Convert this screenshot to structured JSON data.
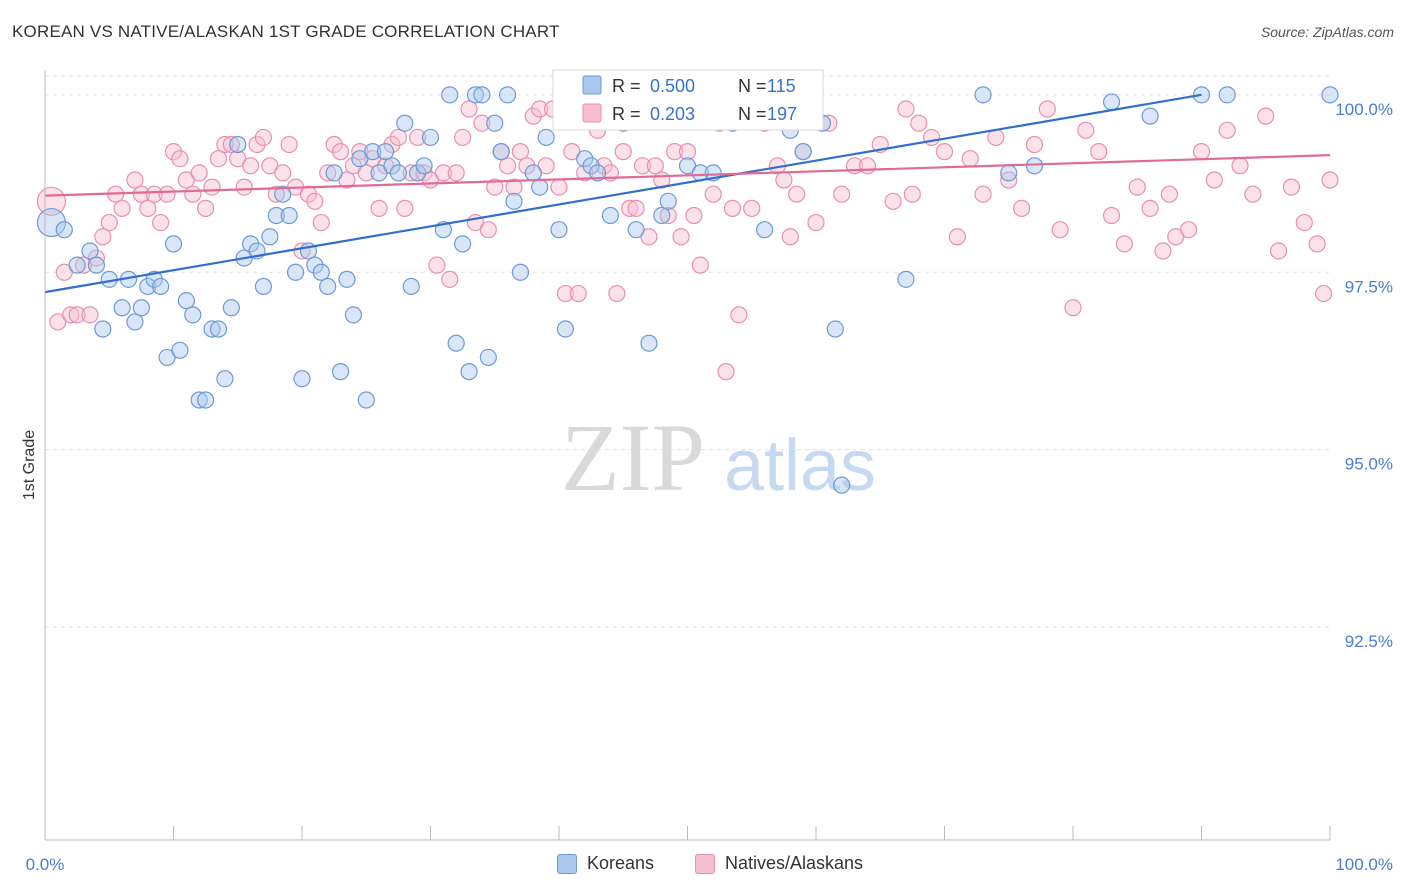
{
  "title": "KOREAN VS NATIVE/ALASKAN 1ST GRADE CORRELATION CHART",
  "source": "Source: ZipAtlas.com",
  "watermark": {
    "zip": "ZIP",
    "atlas": "atlas"
  },
  "legend": {
    "r_label": "R =",
    "n_label": "N =",
    "series": [
      {
        "name": "Koreans",
        "r": "0.500",
        "n": "115"
      },
      {
        "name": "Natives/Alaskans",
        "r": "0.203",
        "n": "197"
      }
    ]
  },
  "colors": {
    "blue_fill": "#a9c8ee",
    "blue_stroke": "#6d9ad6",
    "blue_line": "#2f6fce",
    "pink_fill": "#f6bfd0",
    "pink_stroke": "#e98fae",
    "pink_line": "#e06a98",
    "tick_text": "#4a7fd0",
    "grid": "#e3e3e3"
  },
  "chart_data": {
    "type": "scatter",
    "title": "KOREAN VS NATIVE/ALASKAN 1ST GRADE CORRELATION CHART",
    "xlabel": "",
    "ylabel": "1st Grade",
    "xlim": [
      0,
      100
    ],
    "ylim": [
      89.5,
      100.35
    ],
    "x_tick_labels": [
      "0.0%",
      "100.0%"
    ],
    "y_ticks": [
      {
        "value": 100.0,
        "label": "100.0%"
      },
      {
        "value": 97.5,
        "label": "97.5%"
      },
      {
        "value": 95.0,
        "label": "95.0%"
      },
      {
        "value": 92.5,
        "label": "92.5%"
      }
    ],
    "grid": true,
    "legend_position": "top-center",
    "series": [
      {
        "name": "Koreans",
        "trend": {
          "x": [
            0,
            90
          ],
          "y": [
            97.22,
            100.0
          ]
        },
        "points": [
          [
            0.5,
            98.2
          ],
          [
            1.5,
            98.1
          ],
          [
            2.5,
            97.6
          ],
          [
            3.5,
            97.8
          ],
          [
            4.0,
            97.6
          ],
          [
            4.5,
            96.7
          ],
          [
            5.0,
            97.4
          ],
          [
            6.0,
            97.0
          ],
          [
            6.5,
            97.4
          ],
          [
            7.0,
            96.8
          ],
          [
            7.5,
            97.0
          ],
          [
            8.0,
            97.3
          ],
          [
            8.5,
            97.4
          ],
          [
            9.0,
            97.3
          ],
          [
            9.5,
            96.3
          ],
          [
            10.0,
            97.9
          ],
          [
            10.5,
            96.4
          ],
          [
            11.0,
            97.1
          ],
          [
            11.5,
            96.9
          ],
          [
            12.0,
            95.7
          ],
          [
            12.5,
            95.7
          ],
          [
            13.0,
            96.7
          ],
          [
            13.5,
            96.7
          ],
          [
            14.0,
            96.0
          ],
          [
            14.5,
            97.0
          ],
          [
            15.0,
            99.3
          ],
          [
            15.5,
            97.7
          ],
          [
            16.0,
            97.9
          ],
          [
            16.5,
            97.8
          ],
          [
            17.0,
            97.3
          ],
          [
            17.5,
            98.0
          ],
          [
            18.0,
            98.3
          ],
          [
            18.5,
            98.6
          ],
          [
            19.0,
            98.3
          ],
          [
            19.5,
            97.5
          ],
          [
            20.0,
            96.0
          ],
          [
            20.5,
            97.8
          ],
          [
            21.0,
            97.6
          ],
          [
            21.5,
            97.5
          ],
          [
            22.0,
            97.3
          ],
          [
            22.5,
            98.9
          ],
          [
            23.0,
            96.1
          ],
          [
            23.5,
            97.4
          ],
          [
            24.0,
            96.9
          ],
          [
            24.5,
            99.1
          ],
          [
            25.0,
            95.7
          ],
          [
            25.5,
            99.2
          ],
          [
            26.0,
            98.9
          ],
          [
            26.5,
            99.2
          ],
          [
            27.0,
            99.0
          ],
          [
            27.5,
            98.9
          ],
          [
            28.0,
            99.6
          ],
          [
            28.5,
            97.3
          ],
          [
            29.0,
            98.9
          ],
          [
            29.5,
            99.0
          ],
          [
            30.0,
            99.4
          ],
          [
            31.0,
            98.1
          ],
          [
            31.5,
            100.0
          ],
          [
            32.0,
            96.5
          ],
          [
            32.5,
            97.9
          ],
          [
            33.0,
            96.1
          ],
          [
            33.5,
            100.0
          ],
          [
            34.0,
            100.0
          ],
          [
            34.5,
            96.3
          ],
          [
            35.0,
            99.6
          ],
          [
            35.5,
            99.2
          ],
          [
            36.0,
            100.0
          ],
          [
            36.5,
            98.5
          ],
          [
            37.0,
            97.5
          ],
          [
            38.0,
            98.9
          ],
          [
            38.5,
            98.7
          ],
          [
            39.0,
            99.4
          ],
          [
            40.0,
            98.1
          ],
          [
            40.5,
            96.7
          ],
          [
            41.0,
            100.0
          ],
          [
            42.0,
            99.1
          ],
          [
            42.5,
            99.0
          ],
          [
            43.0,
            98.9
          ],
          [
            44.0,
            98.3
          ],
          [
            45.0,
            99.6
          ],
          [
            46.0,
            98.1
          ],
          [
            46.5,
            100.0
          ],
          [
            47.0,
            96.5
          ],
          [
            48.0,
            98.3
          ],
          [
            48.5,
            98.5
          ],
          [
            50.0,
            99.0
          ],
          [
            51.0,
            98.9
          ],
          [
            52.0,
            98.9
          ],
          [
            53.5,
            99.6
          ],
          [
            56.0,
            98.1
          ],
          [
            58.0,
            99.5
          ],
          [
            59.0,
            99.2
          ],
          [
            60.5,
            99.6
          ],
          [
            61.5,
            96.7
          ],
          [
            62.0,
            94.5
          ],
          [
            67.0,
            97.4
          ],
          [
            73.0,
            100.0
          ],
          [
            75.0,
            98.9
          ],
          [
            77.0,
            99.0
          ],
          [
            83.0,
            99.9
          ],
          [
            86.0,
            99.7
          ],
          [
            90.0,
            100.0
          ],
          [
            92.0,
            100.0
          ],
          [
            100.0,
            100.0
          ]
        ]
      },
      {
        "name": "Natives/Alaskans",
        "trend": {
          "x": [
            0,
            100
          ],
          "y": [
            98.58,
            99.15
          ]
        },
        "points": [
          [
            0.5,
            98.5
          ],
          [
            1.0,
            96.8
          ],
          [
            1.5,
            97.5
          ],
          [
            2.0,
            96.9
          ],
          [
            2.5,
            96.9
          ],
          [
            3.0,
            97.6
          ],
          [
            3.5,
            96.9
          ],
          [
            4.0,
            97.7
          ],
          [
            4.5,
            98.0
          ],
          [
            5.0,
            98.2
          ],
          [
            5.5,
            98.6
          ],
          [
            6.0,
            98.4
          ],
          [
            7.0,
            98.8
          ],
          [
            7.5,
            98.6
          ],
          [
            8.0,
            98.4
          ],
          [
            8.5,
            98.6
          ],
          [
            9.0,
            98.2
          ],
          [
            9.5,
            98.6
          ],
          [
            10.0,
            99.2
          ],
          [
            10.5,
            99.1
          ],
          [
            11.0,
            98.8
          ],
          [
            11.5,
            98.6
          ],
          [
            12.0,
            98.9
          ],
          [
            12.5,
            98.4
          ],
          [
            13.0,
            98.7
          ],
          [
            13.5,
            99.1
          ],
          [
            14.0,
            99.3
          ],
          [
            14.5,
            99.3
          ],
          [
            15.0,
            99.1
          ],
          [
            15.5,
            98.7
          ],
          [
            16.0,
            99.0
          ],
          [
            16.5,
            99.3
          ],
          [
            17.0,
            99.4
          ],
          [
            17.5,
            99.0
          ],
          [
            18.0,
            98.6
          ],
          [
            18.5,
            98.9
          ],
          [
            19.0,
            99.3
          ],
          [
            19.5,
            98.7
          ],
          [
            20.0,
            97.8
          ],
          [
            20.5,
            98.6
          ],
          [
            21.0,
            98.5
          ],
          [
            21.5,
            98.2
          ],
          [
            22.0,
            98.9
          ],
          [
            22.5,
            99.3
          ],
          [
            23.0,
            99.2
          ],
          [
            23.5,
            98.8
          ],
          [
            24.0,
            99.0
          ],
          [
            24.5,
            99.2
          ],
          [
            25.0,
            98.9
          ],
          [
            25.5,
            99.1
          ],
          [
            26.0,
            98.4
          ],
          [
            26.5,
            99.0
          ],
          [
            27.0,
            99.3
          ],
          [
            27.5,
            99.4
          ],
          [
            28.0,
            98.4
          ],
          [
            28.5,
            98.9
          ],
          [
            29.0,
            99.4
          ],
          [
            29.5,
            98.9
          ],
          [
            30.0,
            98.8
          ],
          [
            30.5,
            97.6
          ],
          [
            31.0,
            98.9
          ],
          [
            31.5,
            97.4
          ],
          [
            32.0,
            98.9
          ],
          [
            32.5,
            99.4
          ],
          [
            33.0,
            99.8
          ],
          [
            33.5,
            98.2
          ],
          [
            34.0,
            99.6
          ],
          [
            34.5,
            98.1
          ],
          [
            35.0,
            98.7
          ],
          [
            35.5,
            99.2
          ],
          [
            36.0,
            99.0
          ],
          [
            36.5,
            98.7
          ],
          [
            37.0,
            99.2
          ],
          [
            37.5,
            99.0
          ],
          [
            38.0,
            99.7
          ],
          [
            38.5,
            99.8
          ],
          [
            39.0,
            99.0
          ],
          [
            39.5,
            99.8
          ],
          [
            40.0,
            98.7
          ],
          [
            40.5,
            97.2
          ],
          [
            41.0,
            99.2
          ],
          [
            41.5,
            97.2
          ],
          [
            42.0,
            98.9
          ],
          [
            42.5,
            99.8
          ],
          [
            43.0,
            99.5
          ],
          [
            43.5,
            99.0
          ],
          [
            44.0,
            98.9
          ],
          [
            44.5,
            97.2
          ],
          [
            45.0,
            99.2
          ],
          [
            45.5,
            98.4
          ],
          [
            46.0,
            98.4
          ],
          [
            46.5,
            99.0
          ],
          [
            47.0,
            98.0
          ],
          [
            47.5,
            99.0
          ],
          [
            48.0,
            98.8
          ],
          [
            48.5,
            98.3
          ],
          [
            49.0,
            99.2
          ],
          [
            49.5,
            98.0
          ],
          [
            50.0,
            99.2
          ],
          [
            50.5,
            98.3
          ],
          [
            51.0,
            97.6
          ],
          [
            52.0,
            98.6
          ],
          [
            52.5,
            99.6
          ],
          [
            53.0,
            96.1
          ],
          [
            53.5,
            98.4
          ],
          [
            54.0,
            96.9
          ],
          [
            55.0,
            98.4
          ],
          [
            56.0,
            99.6
          ],
          [
            57.0,
            99.0
          ],
          [
            57.5,
            98.8
          ],
          [
            58.0,
            98.0
          ],
          [
            58.5,
            98.6
          ],
          [
            59.0,
            99.2
          ],
          [
            60.0,
            98.2
          ],
          [
            61.0,
            99.6
          ],
          [
            62.0,
            98.6
          ],
          [
            63.0,
            99.0
          ],
          [
            64.0,
            99.0
          ],
          [
            65.0,
            99.3
          ],
          [
            66.0,
            98.5
          ],
          [
            67.0,
            99.8
          ],
          [
            67.5,
            98.6
          ],
          [
            68.0,
            99.6
          ],
          [
            69.0,
            99.4
          ],
          [
            70.0,
            99.2
          ],
          [
            71.0,
            98.0
          ],
          [
            72.0,
            99.1
          ],
          [
            73.0,
            98.6
          ],
          [
            74.0,
            99.4
          ],
          [
            75.0,
            98.8
          ],
          [
            76.0,
            98.4
          ],
          [
            77.0,
            99.3
          ],
          [
            78.0,
            99.8
          ],
          [
            79.0,
            98.1
          ],
          [
            80.0,
            97.0
          ],
          [
            81.0,
            99.5
          ],
          [
            82.0,
            99.2
          ],
          [
            83.0,
            98.3
          ],
          [
            84.0,
            97.9
          ],
          [
            85.0,
            98.7
          ],
          [
            86.0,
            98.4
          ],
          [
            87.0,
            97.8
          ],
          [
            87.5,
            98.6
          ],
          [
            88.0,
            98.0
          ],
          [
            89.0,
            98.1
          ],
          [
            90.0,
            99.2
          ],
          [
            91.0,
            98.8
          ],
          [
            92.0,
            99.5
          ],
          [
            93.0,
            99.0
          ],
          [
            94.0,
            98.6
          ],
          [
            95.0,
            99.7
          ],
          [
            96.0,
            97.8
          ],
          [
            97.0,
            98.7
          ],
          [
            98.0,
            98.2
          ],
          [
            99.0,
            97.9
          ],
          [
            99.5,
            97.2
          ],
          [
            100.0,
            98.8
          ]
        ]
      }
    ]
  }
}
